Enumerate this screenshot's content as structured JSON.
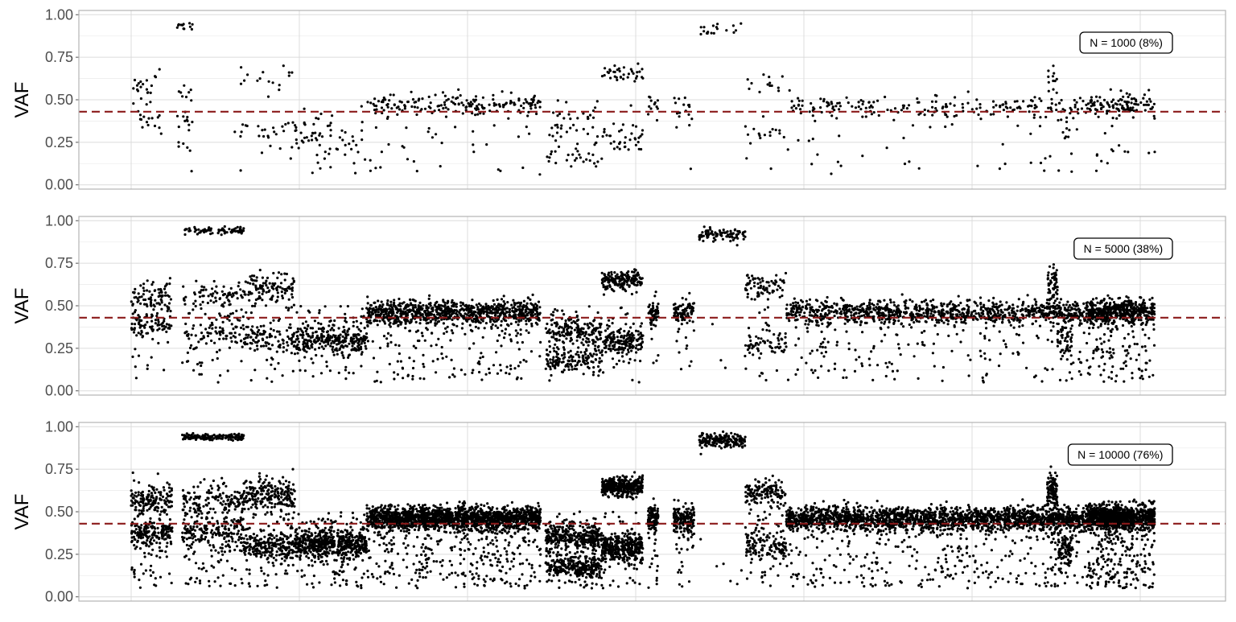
{
  "chart_data": [
    {
      "type": "scatter",
      "ylabel": "VAF",
      "ylim": [
        -0.025,
        1.025
      ],
      "yticks": [
        "0.00",
        "0.25",
        "0.50",
        "0.75",
        "1.00"
      ],
      "ytick_values": [
        0,
        0.25,
        0.5,
        0.75,
        1.0
      ],
      "grid": true,
      "reference_line": {
        "y": 0.43,
        "color": "#8b1a1a",
        "style": "dashed"
      },
      "annotation": "N = 1000 (8%)",
      "n_points": 1000,
      "point_color": "#000000",
      "segments": [
        {
          "xrange": [
            0.0,
            0.03
          ],
          "clusters": [
            [
              0.39,
              0.05
            ],
            [
              0.55,
              0.07
            ]
          ],
          "noise": 0.12,
          "weight": 0.3
        },
        {
          "xrange": [
            0.045,
            0.06
          ],
          "clusters": [
            [
              0.56,
              0.05
            ],
            [
              0.38,
              0.04
            ],
            [
              0.94,
              0.01
            ]
          ],
          "noise": 0.15,
          "weight": 0.3
        },
        {
          "xrange": [
            0.1,
            0.16
          ],
          "clusters": [
            [
              0.62,
              0.05
            ],
            [
              0.3,
              0.04
            ]
          ],
          "noise": 0.12,
          "weight": 0.35
        },
        {
          "xrange": [
            0.16,
            0.23
          ],
          "clusters": [
            [
              0.29,
              0.05
            ]
          ],
          "noise": 0.18,
          "weight": 0.55
        },
        {
          "xrange": [
            0.23,
            0.4
          ],
          "clusters": [
            [
              0.47,
              0.035
            ]
          ],
          "noise": 0.2,
          "weight": 1.7
        },
        {
          "xrange": [
            0.405,
            0.46
          ],
          "clusters": [
            [
              0.35,
              0.04
            ],
            [
              0.18,
              0.04
            ]
          ],
          "noise": 0.12,
          "weight": 0.55
        },
        {
          "xrange": [
            0.46,
            0.5
          ],
          "clusters": [
            [
              0.28,
              0.04
            ]
          ],
          "noise": 0.1,
          "weight": 0.3
        },
        {
          "xrange": [
            0.46,
            0.5
          ],
          "clusters": [
            [
              0.65,
              0.03
            ]
          ],
          "noise": 0.05,
          "weight": 0.3
        },
        {
          "xrange": [
            0.505,
            0.515
          ],
          "clusters": [
            [
              0.46,
              0.04
            ]
          ],
          "noise": 0.1,
          "weight": 0.1
        },
        {
          "xrange": [
            0.53,
            0.55
          ],
          "clusters": [
            [
              0.46,
              0.04
            ]
          ],
          "noise": 0.15,
          "weight": 0.15
        },
        {
          "xrange": [
            0.555,
            0.6
          ],
          "clusters": [
            [
              0.92,
              0.02
            ]
          ],
          "noise": 0.05,
          "weight": 0.15
        },
        {
          "xrange": [
            0.6,
            0.64
          ],
          "clusters": [
            [
              0.61,
              0.04
            ],
            [
              0.29,
              0.04
            ]
          ],
          "noise": 0.12,
          "weight": 0.25
        },
        {
          "xrange": [
            0.64,
            0.98
          ],
          "clusters": [
            [
              0.46,
              0.035
            ]
          ],
          "noise": 0.18,
          "weight": 2.2
        },
        {
          "xrange": [
            0.895,
            0.905
          ],
          "clusters": [
            [
              0.62,
              0.05
            ]
          ],
          "noise": 0.1,
          "weight": 0.1
        },
        {
          "xrange": [
            0.905,
            0.92
          ],
          "clusters": [
            [
              0.28,
              0.05
            ]
          ],
          "noise": 0.12,
          "weight": 0.08
        },
        {
          "xrange": [
            0.935,
            1.0
          ],
          "clusters": [
            [
              0.47,
              0.035
            ]
          ],
          "noise": 0.2,
          "weight": 0.75
        }
      ]
    },
    {
      "type": "scatter",
      "ylabel": "VAF",
      "ylim": [
        -0.025,
        1.025
      ],
      "yticks": [
        "0.00",
        "0.25",
        "0.50",
        "0.75",
        "1.00"
      ],
      "ytick_values": [
        0,
        0.25,
        0.5,
        0.75,
        1.0
      ],
      "grid": true,
      "reference_line": {
        "y": 0.43,
        "color": "#8b1a1a",
        "style": "dashed"
      },
      "annotation": "N = 5000 (38%)",
      "n_points": 5000,
      "point_color": "#000000",
      "segments": [
        {
          "xrange": [
            0.0,
            0.04
          ],
          "clusters": [
            [
              0.39,
              0.04
            ],
            [
              0.56,
              0.05
            ]
          ],
          "noise": 0.12,
          "weight": 0.3
        },
        {
          "xrange": [
            0.05,
            0.11
          ],
          "clusters": [
            [
              0.56,
              0.05
            ],
            [
              0.37,
              0.05
            ],
            [
              0.94,
              0.01
            ]
          ],
          "noise": 0.15,
          "weight": 0.45
        },
        {
          "xrange": [
            0.11,
            0.16
          ],
          "clusters": [
            [
              0.6,
              0.05
            ],
            [
              0.31,
              0.04
            ]
          ],
          "noise": 0.12,
          "weight": 0.4
        },
        {
          "xrange": [
            0.16,
            0.23
          ],
          "clusters": [
            [
              0.3,
              0.04
            ]
          ],
          "noise": 0.18,
          "weight": 0.55
        },
        {
          "xrange": [
            0.23,
            0.4
          ],
          "clusters": [
            [
              0.46,
              0.035
            ]
          ],
          "noise": 0.2,
          "weight": 1.7
        },
        {
          "xrange": [
            0.405,
            0.46
          ],
          "clusters": [
            [
              0.35,
              0.04
            ],
            [
              0.18,
              0.04
            ]
          ],
          "noise": 0.12,
          "weight": 0.55
        },
        {
          "xrange": [
            0.46,
            0.5
          ],
          "clusters": [
            [
              0.29,
              0.04
            ]
          ],
          "noise": 0.1,
          "weight": 0.3
        },
        {
          "xrange": [
            0.46,
            0.5
          ],
          "clusters": [
            [
              0.65,
              0.03
            ]
          ],
          "noise": 0.05,
          "weight": 0.3
        },
        {
          "xrange": [
            0.505,
            0.515
          ],
          "clusters": [
            [
              0.46,
              0.04
            ]
          ],
          "noise": 0.1,
          "weight": 0.1
        },
        {
          "xrange": [
            0.53,
            0.55
          ],
          "clusters": [
            [
              0.46,
              0.04
            ]
          ],
          "noise": 0.15,
          "weight": 0.15
        },
        {
          "xrange": [
            0.555,
            0.6
          ],
          "clusters": [
            [
              0.92,
              0.02
            ]
          ],
          "noise": 0.05,
          "weight": 0.15
        },
        {
          "xrange": [
            0.6,
            0.64
          ],
          "clusters": [
            [
              0.61,
              0.04
            ],
            [
              0.29,
              0.04
            ]
          ],
          "noise": 0.12,
          "weight": 0.25
        },
        {
          "xrange": [
            0.64,
            0.98
          ],
          "clusters": [
            [
              0.46,
              0.035
            ]
          ],
          "noise": 0.18,
          "weight": 2.2
        },
        {
          "xrange": [
            0.895,
            0.905
          ],
          "clusters": [
            [
              0.62,
              0.05
            ]
          ],
          "noise": 0.1,
          "weight": 0.1
        },
        {
          "xrange": [
            0.905,
            0.92
          ],
          "clusters": [
            [
              0.28,
              0.05
            ]
          ],
          "noise": 0.12,
          "weight": 0.08
        },
        {
          "xrange": [
            0.935,
            1.0
          ],
          "clusters": [
            [
              0.47,
              0.035
            ]
          ],
          "noise": 0.2,
          "weight": 0.75
        }
      ]
    },
    {
      "type": "scatter",
      "ylabel": "VAF",
      "ylim": [
        -0.025,
        1.025
      ],
      "yticks": [
        "0.00",
        "0.25",
        "0.50",
        "0.75",
        "1.00"
      ],
      "ytick_values": [
        0,
        0.25,
        0.5,
        0.75,
        1.0
      ],
      "grid": true,
      "reference_line": {
        "y": 0.43,
        "color": "#8b1a1a",
        "style": "dashed"
      },
      "annotation": "N = 10000 (76%)",
      "n_points": 10000,
      "point_color": "#000000",
      "segments": [
        {
          "xrange": [
            0.0,
            0.04
          ],
          "clusters": [
            [
              0.38,
              0.04
            ],
            [
              0.57,
              0.05
            ]
          ],
          "noise": 0.12,
          "weight": 0.3
        },
        {
          "xrange": [
            0.05,
            0.11
          ],
          "clusters": [
            [
              0.56,
              0.05
            ],
            [
              0.37,
              0.05
            ],
            [
              0.94,
              0.01
            ]
          ],
          "noise": 0.15,
          "weight": 0.45
        },
        {
          "xrange": [
            0.11,
            0.16
          ],
          "clusters": [
            [
              0.6,
              0.05
            ],
            [
              0.3,
              0.04
            ]
          ],
          "noise": 0.12,
          "weight": 0.4
        },
        {
          "xrange": [
            0.16,
            0.23
          ],
          "clusters": [
            [
              0.31,
              0.04
            ]
          ],
          "noise": 0.18,
          "weight": 0.55
        },
        {
          "xrange": [
            0.23,
            0.4
          ],
          "clusters": [
            [
              0.46,
              0.035
            ]
          ],
          "noise": 0.2,
          "weight": 1.7
        },
        {
          "xrange": [
            0.405,
            0.46
          ],
          "clusters": [
            [
              0.35,
              0.04
            ],
            [
              0.18,
              0.04
            ]
          ],
          "noise": 0.12,
          "weight": 0.55
        },
        {
          "xrange": [
            0.46,
            0.5
          ],
          "clusters": [
            [
              0.29,
              0.04
            ]
          ],
          "noise": 0.1,
          "weight": 0.3
        },
        {
          "xrange": [
            0.46,
            0.5
          ],
          "clusters": [
            [
              0.65,
              0.03
            ]
          ],
          "noise": 0.05,
          "weight": 0.3
        },
        {
          "xrange": [
            0.505,
            0.515
          ],
          "clusters": [
            [
              0.46,
              0.04
            ]
          ],
          "noise": 0.1,
          "weight": 0.1
        },
        {
          "xrange": [
            0.53,
            0.55
          ],
          "clusters": [
            [
              0.46,
              0.04
            ]
          ],
          "noise": 0.15,
          "weight": 0.15
        },
        {
          "xrange": [
            0.555,
            0.6
          ],
          "clusters": [
            [
              0.92,
              0.02
            ]
          ],
          "noise": 0.05,
          "weight": 0.15
        },
        {
          "xrange": [
            0.6,
            0.64
          ],
          "clusters": [
            [
              0.61,
              0.04
            ],
            [
              0.29,
              0.04
            ]
          ],
          "noise": 0.12,
          "weight": 0.25
        },
        {
          "xrange": [
            0.64,
            0.98
          ],
          "clusters": [
            [
              0.46,
              0.035
            ]
          ],
          "noise": 0.18,
          "weight": 2.2
        },
        {
          "xrange": [
            0.895,
            0.905
          ],
          "clusters": [
            [
              0.62,
              0.05
            ]
          ],
          "noise": 0.1,
          "weight": 0.1
        },
        {
          "xrange": [
            0.905,
            0.92
          ],
          "clusters": [
            [
              0.28,
              0.05
            ]
          ],
          "noise": 0.12,
          "weight": 0.08
        },
        {
          "xrange": [
            0.935,
            1.0
          ],
          "clusters": [
            [
              0.47,
              0.035
            ]
          ],
          "noise": 0.2,
          "weight": 0.75
        }
      ]
    }
  ]
}
